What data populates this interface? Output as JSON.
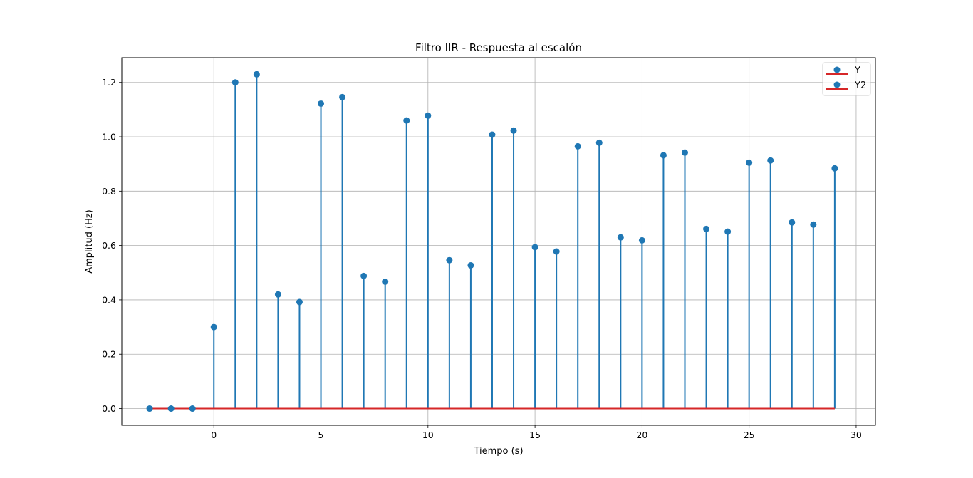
{
  "chart_data": {
    "type": "stem",
    "title": "Filtro IIR - Respuesta al escalón",
    "xlabel": "Tiempo (s)",
    "ylabel": "Amplitud (Hz)",
    "xlim": [
      -4.3,
      30.9
    ],
    "ylim": [
      -0.0615,
      1.291
    ],
    "x_ticks": [
      0,
      5,
      10,
      15,
      20,
      25,
      30
    ],
    "y_ticks": [
      0.0,
      0.2,
      0.4,
      0.6,
      0.8,
      1.0,
      1.2
    ],
    "x_tick_labels": [
      "0",
      "5",
      "10",
      "15",
      "20",
      "25",
      "30"
    ],
    "y_tick_labels": [
      "0.0",
      "0.2",
      "0.4",
      "0.6",
      "0.8",
      "1.0",
      "1.2"
    ],
    "grid": true,
    "legend_position": "top-right",
    "series": [
      {
        "name": "Y",
        "color": "#1f77b4",
        "baseline_color": "#d62728",
        "x": [
          -3,
          -2,
          -1,
          0,
          1,
          2,
          3,
          4,
          5,
          6,
          7,
          8,
          9,
          10,
          11,
          12,
          13,
          14,
          15,
          16,
          17,
          18,
          19,
          20,
          21,
          22,
          23,
          24,
          25,
          26,
          27,
          28,
          29
        ],
        "y": [
          0,
          0,
          0,
          0.3,
          1.2,
          1.23,
          0.42,
          0.392,
          1.122,
          1.146,
          0.488,
          0.467,
          1.06,
          1.078,
          0.546,
          0.527,
          1.008,
          1.023,
          0.594,
          0.578,
          0.965,
          0.978,
          0.63,
          0.619,
          0.932,
          0.942,
          0.661,
          0.651,
          0.905,
          0.913,
          0.685,
          0.677,
          0.884
        ]
      },
      {
        "name": "Y2",
        "color": "#1f77b4",
        "baseline_color": "#d62728",
        "x": [],
        "y": []
      }
    ]
  }
}
